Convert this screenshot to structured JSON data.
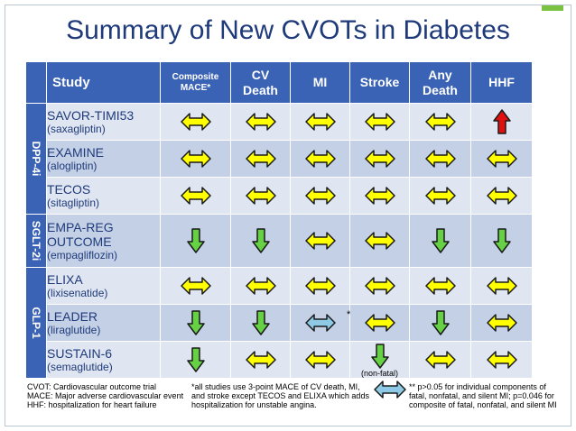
{
  "title": "Summary of New CVOTs in Diabetes",
  "colors": {
    "header": "#3b63b5",
    "title": "#1f3a7a",
    "neutral": "#ffff00",
    "down": "#66d144",
    "up": "#e01010",
    "mi_liraglutide": "#8ec9e5"
  },
  "header": {
    "study": "Study",
    "cols": [
      {
        "l1": "Composite",
        "l2": "MACE*"
      },
      {
        "l1": "CV",
        "l2": "Death"
      },
      {
        "l1": "MI",
        "l2": ""
      },
      {
        "l1": "Stroke",
        "l2": ""
      },
      {
        "l1": "Any",
        "l2": "Death"
      },
      {
        "l1": "HHF",
        "l2": ""
      }
    ]
  },
  "groups": {
    "dpp4": "DPP-4i",
    "sglt2": "SGLT-2i",
    "glp1": "GLP-1"
  },
  "rows": [
    {
      "name": "SAVOR-TIMI53",
      "drug": "(saxagliptin)",
      "res": [
        "neutral",
        "neutral",
        "neutral",
        "neutral",
        "neutral",
        "up"
      ]
    },
    {
      "name": "EXAMINE",
      "drug": "(alogliptin)",
      "res": [
        "neutral",
        "neutral",
        "neutral",
        "neutral",
        "neutral",
        "neutral"
      ]
    },
    {
      "name": "TECOS",
      "drug": "(sitagliptin)",
      "res": [
        "neutral",
        "neutral",
        "neutral",
        "neutral",
        "neutral",
        "neutral"
      ]
    },
    {
      "name": "EMPA-REG OUTCOME",
      "drug": "(empagliflozin)",
      "res": [
        "down",
        "down",
        "neutral",
        "neutral",
        "down",
        "down"
      ]
    },
    {
      "name": "ELIXA",
      "drug": "(lixisenatide)",
      "res": [
        "neutral",
        "neutral",
        "neutral",
        "neutral",
        "neutral",
        "neutral"
      ]
    },
    {
      "name": "LEADER",
      "drug": "(liraglutide)",
      "res": [
        "down",
        "down",
        "blue",
        "neutral",
        "down",
        "neutral"
      ]
    },
    {
      "name": "SUSTAIN-6",
      "drug": "(semaglutide)",
      "res": [
        "down",
        "neutral",
        "neutral",
        "down",
        "neutral",
        "neutral"
      ]
    }
  ],
  "annotations": {
    "mi_star": "**",
    "non_fatal": "(non-fatal)"
  },
  "footer": {
    "abbrev": [
      "CVOT: Cardiovascular outcome trial",
      "MACE: Major adverse cardiovascular event",
      "HHF: hospitalization for heart failure"
    ],
    "mace_note": [
      "*all studies use 3-point MACE of CV death, MI,",
      "and stroke except TECOS and ELIXA which adds",
      "hospitalization for unstable angina."
    ],
    "p_note": [
      "** p>0.05 for individual components of",
      "fatal, nonfatal, and silent MI; p=0.046 for",
      "composite of fatal, nonfatal, and silent MI"
    ]
  }
}
